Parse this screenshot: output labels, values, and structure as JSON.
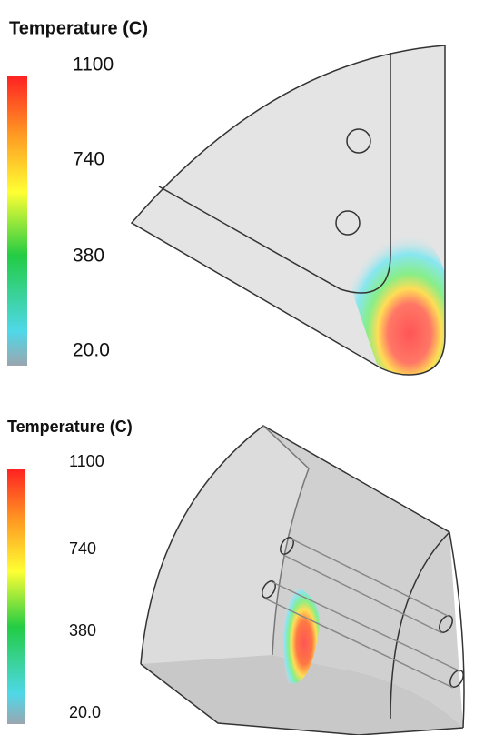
{
  "panels": [
    {
      "title": "Temperature (C)",
      "colorbar_labels": [
        "1100",
        "740",
        "380",
        "20.0"
      ]
    },
    {
      "title": "Temperature (C)",
      "colorbar_labels": [
        "1100",
        "740",
        "380",
        "20.0"
      ]
    }
  ]
}
